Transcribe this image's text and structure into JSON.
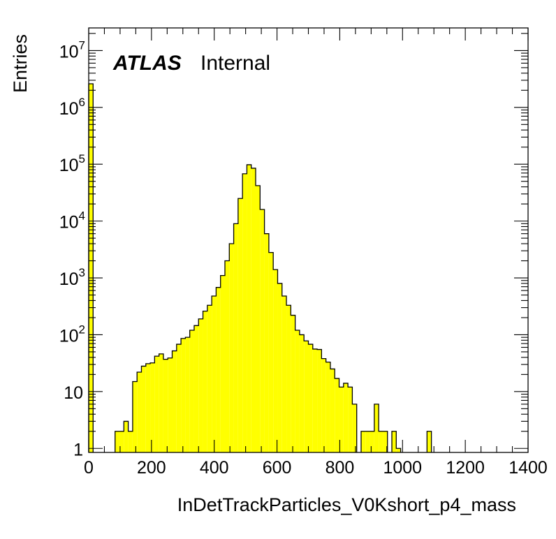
{
  "chart_data": {
    "type": "bar",
    "title": "",
    "xlabel": "InDetTrackParticles_V0Kshort_p4_mass",
    "ylabel": "Entries",
    "xlim": [
      0,
      1400
    ],
    "ylim": [
      0.85,
      25000000
    ],
    "log_y": true,
    "grid": false,
    "legend": "none",
    "fill_color": "#ffff00",
    "line_color": "#000000",
    "label": {
      "experiment": "ATLAS",
      "status": "Internal"
    },
    "bin_width": 14,
    "x_ticks": [
      "0",
      "200",
      "400",
      "600",
      "800",
      "1000",
      "1200",
      "1400"
    ],
    "x_tick_values": [
      0,
      200,
      400,
      600,
      800,
      1000,
      1200,
      1400
    ],
    "y_ticks": [
      {
        "value": 1,
        "base": "1",
        "exp": ""
      },
      {
        "value": 10,
        "base": "10",
        "exp": ""
      },
      {
        "value": 100,
        "base": "10",
        "exp": "2"
      },
      {
        "value": 1000,
        "base": "10",
        "exp": "3"
      },
      {
        "value": 10000,
        "base": "10",
        "exp": "4"
      },
      {
        "value": 100000,
        "base": "10",
        "exp": "5"
      },
      {
        "value": 1000000,
        "base": "10",
        "exp": "6"
      },
      {
        "value": 10000000,
        "base": "10",
        "exp": "7"
      }
    ],
    "bins": [
      {
        "x": 0,
        "y": 2600000
      },
      {
        "x": 84,
        "y": 2
      },
      {
        "x": 98,
        "y": 2
      },
      {
        "x": 112,
        "y": 3
      },
      {
        "x": 126,
        "y": 2
      },
      {
        "x": 140,
        "y": 15
      },
      {
        "x": 154,
        "y": 22
      },
      {
        "x": 168,
        "y": 28
      },
      {
        "x": 182,
        "y": 31
      },
      {
        "x": 196,
        "y": 32
      },
      {
        "x": 210,
        "y": 42
      },
      {
        "x": 224,
        "y": 46
      },
      {
        "x": 238,
        "y": 37
      },
      {
        "x": 252,
        "y": 39
      },
      {
        "x": 266,
        "y": 52
      },
      {
        "x": 280,
        "y": 68
      },
      {
        "x": 294,
        "y": 86
      },
      {
        "x": 308,
        "y": 90
      },
      {
        "x": 322,
        "y": 120
      },
      {
        "x": 336,
        "y": 145
      },
      {
        "x": 350,
        "y": 190
      },
      {
        "x": 364,
        "y": 260
      },
      {
        "x": 378,
        "y": 330
      },
      {
        "x": 392,
        "y": 480
      },
      {
        "x": 406,
        "y": 680
      },
      {
        "x": 420,
        "y": 1100
      },
      {
        "x": 434,
        "y": 2000
      },
      {
        "x": 448,
        "y": 4000
      },
      {
        "x": 462,
        "y": 9000
      },
      {
        "x": 476,
        "y": 25000
      },
      {
        "x": 490,
        "y": 68000
      },
      {
        "x": 504,
        "y": 98000
      },
      {
        "x": 518,
        "y": 85000
      },
      {
        "x": 532,
        "y": 42000
      },
      {
        "x": 546,
        "y": 16000
      },
      {
        "x": 560,
        "y": 6000
      },
      {
        "x": 574,
        "y": 2800
      },
      {
        "x": 588,
        "y": 1400
      },
      {
        "x": 602,
        "y": 800
      },
      {
        "x": 616,
        "y": 480
      },
      {
        "x": 630,
        "y": 330
      },
      {
        "x": 644,
        "y": 220
      },
      {
        "x": 658,
        "y": 120
      },
      {
        "x": 672,
        "y": 100
      },
      {
        "x": 686,
        "y": 78
      },
      {
        "x": 700,
        "y": 68
      },
      {
        "x": 714,
        "y": 56
      },
      {
        "x": 728,
        "y": 55
      },
      {
        "x": 742,
        "y": 38
      },
      {
        "x": 756,
        "y": 33
      },
      {
        "x": 770,
        "y": 25
      },
      {
        "x": 784,
        "y": 17
      },
      {
        "x": 798,
        "y": 12
      },
      {
        "x": 812,
        "y": 14
      },
      {
        "x": 826,
        "y": 12
      },
      {
        "x": 840,
        "y": 6
      },
      {
        "x": 868,
        "y": 2
      },
      {
        "x": 882,
        "y": 2
      },
      {
        "x": 896,
        "y": 2
      },
      {
        "x": 910,
        "y": 6
      },
      {
        "x": 924,
        "y": 2
      },
      {
        "x": 938,
        "y": 2
      },
      {
        "x": 966,
        "y": 2
      },
      {
        "x": 980,
        "y": 1
      },
      {
        "x": 1078,
        "y": 2
      }
    ]
  }
}
